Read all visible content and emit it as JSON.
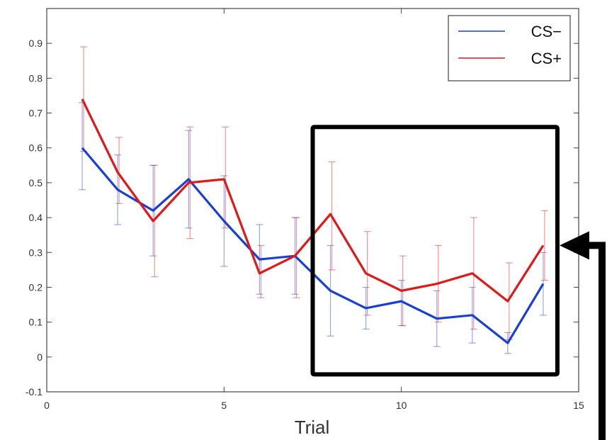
{
  "chart_data": {
    "type": "line",
    "xlabel": "Trial",
    "ylabel": "",
    "xlim": [
      0,
      15
    ],
    "ylim": [
      -0.1,
      1.0
    ],
    "xticks": [
      0,
      5,
      10,
      15
    ],
    "yticks": [
      -0.1,
      0,
      0.1,
      0.2,
      0.3,
      0.4,
      0.5,
      0.6,
      0.7,
      0.8,
      0.9
    ],
    "grid": false,
    "legend_position": "top-right",
    "x": [
      1,
      2,
      3,
      4,
      5,
      6,
      7,
      8,
      9,
      10,
      11,
      12,
      13,
      14
    ],
    "series": [
      {
        "name": "CS−",
        "color": "#1a3fd6",
        "values": [
          0.6,
          0.48,
          0.42,
          0.51,
          0.39,
          0.28,
          0.29,
          0.19,
          0.14,
          0.16,
          0.11,
          0.12,
          0.04,
          0.21
        ],
        "err_low": [
          0.48,
          0.38,
          0.29,
          0.37,
          0.26,
          0.18,
          0.18,
          0.06,
          0.08,
          0.09,
          0.03,
          0.04,
          0.01,
          0.12
        ],
        "err_high": [
          0.73,
          0.58,
          0.55,
          0.65,
          0.52,
          0.38,
          0.4,
          0.32,
          0.2,
          0.22,
          0.19,
          0.2,
          0.07,
          0.3
        ]
      },
      {
        "name": "CS+",
        "color": "#e01818",
        "values": [
          0.74,
          0.53,
          0.39,
          0.5,
          0.51,
          0.24,
          0.29,
          0.41,
          0.24,
          0.19,
          0.21,
          0.24,
          0.16,
          0.32
        ],
        "err_low": [
          0.59,
          0.44,
          0.23,
          0.34,
          0.37,
          0.17,
          0.17,
          0.25,
          0.12,
          0.09,
          0.1,
          0.08,
          0.05,
          0.22
        ],
        "err_high": [
          0.89,
          0.63,
          0.55,
          0.66,
          0.66,
          0.32,
          0.4,
          0.56,
          0.36,
          0.29,
          0.32,
          0.4,
          0.27,
          0.42
        ]
      }
    ],
    "annotations": [
      {
        "type": "highlight-box",
        "x_range": [
          7.5,
          14.4
        ],
        "y_range": [
          -0.05,
          0.66
        ],
        "color": "#000000"
      },
      {
        "type": "arrow",
        "points_to": {
          "x": 14.4,
          "y": 0.32
        },
        "color": "#000000"
      }
    ]
  }
}
